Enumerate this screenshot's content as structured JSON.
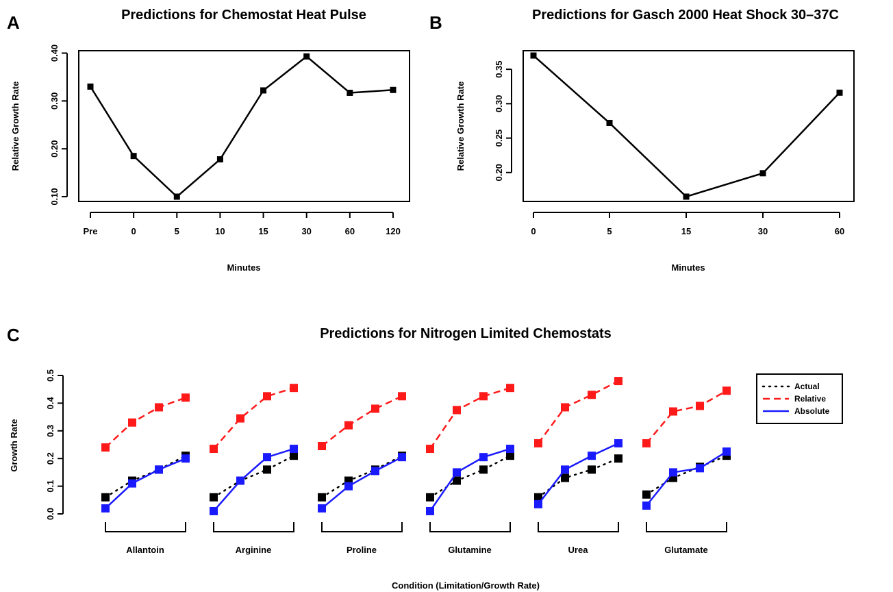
{
  "chart_data": [
    {
      "panel_label": "A",
      "type": "line",
      "title": "Predictions for Chemostat Heat Pulse",
      "xlabel": "Minutes",
      "ylabel": "Relative Growth Rate",
      "categories": [
        "Pre",
        "0",
        "5",
        "10",
        "15",
        "30",
        "60",
        "120"
      ],
      "values": [
        0.33,
        0.185,
        0.1,
        0.178,
        0.322,
        0.393,
        0.317,
        0.323
      ],
      "yticks": [
        "0.10",
        "0.20",
        "0.30",
        "0.40"
      ],
      "ylim": [
        0.09,
        0.405
      ],
      "color": "#000000",
      "grid": false
    },
    {
      "panel_label": "B",
      "type": "line",
      "title": "Predictions for Gasch 2000 Heat Shock 30–37C",
      "xlabel": "Minutes",
      "ylabel": "Relative Growth Rate",
      "categories": [
        "0",
        "5",
        "15",
        "30",
        "60"
      ],
      "values": [
        0.37,
        0.272,
        0.165,
        0.199,
        0.316
      ],
      "yticks": [
        "0.20",
        "0.25",
        "0.30",
        "0.35"
      ],
      "ylim": [
        0.158,
        0.377
      ],
      "color": "#000000",
      "grid": false
    },
    {
      "panel_label": "C",
      "type": "line",
      "title": "Predictions for Nitrogen Limited Chemostats",
      "xlabel": "Condition (Limitation/Growth Rate)",
      "ylabel": "Growth Rate",
      "categories": [
        "Allantoin",
        "Arginine",
        "Proline",
        "Glutamine",
        "Urea",
        "Glutamate"
      ],
      "points_per_group": 4,
      "yticks": [
        "0.0",
        "0.1",
        "0.2",
        "0.3",
        "0.4",
        "0.5"
      ],
      "ylim": [
        0,
        0.5
      ],
      "legend_position": "top-right",
      "grid": false,
      "series": [
        {
          "name": "Actual",
          "color": "#000000",
          "line_style": "dotted",
          "values": [
            [
              0.06,
              0.12,
              0.16,
              0.21
            ],
            [
              0.06,
              0.12,
              0.16,
              0.21
            ],
            [
              0.06,
              0.12,
              0.16,
              0.21
            ],
            [
              0.06,
              0.12,
              0.16,
              0.21
            ],
            [
              0.06,
              0.13,
              0.16,
              0.2
            ],
            [
              0.07,
              0.13,
              0.17,
              0.21
            ]
          ]
        },
        {
          "name": "Relative",
          "color": "#ff1a1a",
          "line_style": "dashed",
          "values": [
            [
              0.24,
              0.33,
              0.385,
              0.42
            ],
            [
              0.235,
              0.345,
              0.425,
              0.455
            ],
            [
              0.245,
              0.32,
              0.38,
              0.425
            ],
            [
              0.235,
              0.375,
              0.425,
              0.455
            ],
            [
              0.255,
              0.385,
              0.43,
              0.48
            ],
            [
              0.255,
              0.37,
              0.39,
              0.445
            ]
          ]
        },
        {
          "name": "Absolute",
          "color": "#1a1aff",
          "line_style": "solid",
          "values": [
            [
              0.02,
              0.11,
              0.16,
              0.2
            ],
            [
              0.01,
              0.12,
              0.205,
              0.235
            ],
            [
              0.02,
              0.1,
              0.155,
              0.205
            ],
            [
              0.01,
              0.15,
              0.205,
              0.235
            ],
            [
              0.035,
              0.16,
              0.21,
              0.255
            ],
            [
              0.03,
              0.15,
              0.165,
              0.225
            ]
          ]
        }
      ]
    }
  ]
}
